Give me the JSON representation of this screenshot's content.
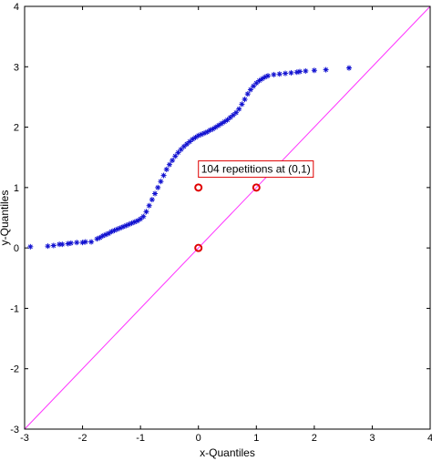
{
  "chart_data": {
    "type": "scatter",
    "title": "",
    "xlabel": "x-Quantiles",
    "ylabel": "y-Quantiles",
    "xlim": [
      -3,
      4
    ],
    "ylim": [
      -3,
      4
    ],
    "xticks": [
      "-3",
      "-2",
      "-1",
      "0",
      "1",
      "2",
      "3",
      "4"
    ],
    "yticks": [
      "-3",
      "-2",
      "-1",
      "0",
      "1",
      "2",
      "3",
      "4"
    ],
    "grid": false,
    "reference_line": {
      "x": [
        -3,
        4
      ],
      "y": [
        -3,
        4
      ],
      "color": "#ff33ff"
    },
    "series": [
      {
        "marker": "star",
        "color": "#1010d0",
        "points": [
          [
            -2.9,
            0.02
          ],
          [
            -2.6,
            0.03
          ],
          [
            -2.5,
            0.04
          ],
          [
            -2.4,
            0.06
          ],
          [
            -2.35,
            0.06
          ],
          [
            -2.25,
            0.07
          ],
          [
            -2.2,
            0.08
          ],
          [
            -2.1,
            0.09
          ],
          [
            -2.0,
            0.09
          ],
          [
            -1.95,
            0.1
          ],
          [
            -1.85,
            0.1
          ],
          [
            -1.75,
            0.15
          ],
          [
            -1.7,
            0.17
          ],
          [
            -1.65,
            0.2
          ],
          [
            -1.6,
            0.22
          ],
          [
            -1.55,
            0.24
          ],
          [
            -1.5,
            0.27
          ],
          [
            -1.45,
            0.29
          ],
          [
            -1.4,
            0.31
          ],
          [
            -1.35,
            0.33
          ],
          [
            -1.3,
            0.35
          ],
          [
            -1.25,
            0.37
          ],
          [
            -1.2,
            0.39
          ],
          [
            -1.15,
            0.41
          ],
          [
            -1.1,
            0.43
          ],
          [
            -1.05,
            0.45
          ],
          [
            -1.0,
            0.48
          ],
          [
            -0.95,
            0.52
          ],
          [
            -0.9,
            0.6
          ],
          [
            -0.85,
            0.7
          ],
          [
            -0.8,
            0.8
          ],
          [
            -0.75,
            0.9
          ],
          [
            -0.7,
            1.0
          ],
          [
            -0.65,
            1.1
          ],
          [
            -0.6,
            1.2
          ],
          [
            -0.55,
            1.3
          ],
          [
            -0.5,
            1.38
          ],
          [
            -0.45,
            1.45
          ],
          [
            -0.4,
            1.52
          ],
          [
            -0.35,
            1.58
          ],
          [
            -0.3,
            1.63
          ],
          [
            -0.25,
            1.68
          ],
          [
            -0.2,
            1.72
          ],
          [
            -0.15,
            1.76
          ],
          [
            -0.1,
            1.8
          ],
          [
            -0.05,
            1.83
          ],
          [
            0.0,
            1.86
          ],
          [
            0.05,
            1.88
          ],
          [
            0.1,
            1.9
          ],
          [
            0.15,
            1.92
          ],
          [
            0.2,
            1.95
          ],
          [
            0.25,
            1.97
          ],
          [
            0.3,
            2.0
          ],
          [
            0.35,
            2.03
          ],
          [
            0.4,
            2.06
          ],
          [
            0.45,
            2.09
          ],
          [
            0.5,
            2.12
          ],
          [
            0.55,
            2.16
          ],
          [
            0.6,
            2.2
          ],
          [
            0.65,
            2.24
          ],
          [
            0.7,
            2.3
          ],
          [
            0.75,
            2.38
          ],
          [
            0.8,
            2.46
          ],
          [
            0.85,
            2.55
          ],
          [
            0.9,
            2.62
          ],
          [
            0.95,
            2.68
          ],
          [
            1.0,
            2.73
          ],
          [
            1.05,
            2.77
          ],
          [
            1.1,
            2.8
          ],
          [
            1.15,
            2.83
          ],
          [
            1.2,
            2.85
          ],
          [
            1.3,
            2.87
          ],
          [
            1.4,
            2.88
          ],
          [
            1.5,
            2.89
          ],
          [
            1.6,
            2.9
          ],
          [
            1.7,
            2.91
          ],
          [
            1.75,
            2.92
          ],
          [
            1.85,
            2.93
          ],
          [
            2.0,
            2.94
          ],
          [
            2.2,
            2.95
          ],
          [
            2.6,
            2.98
          ]
        ]
      },
      {
        "marker": "circle",
        "color": "#e00000",
        "points": [
          [
            0,
            1
          ],
          [
            1,
            1
          ],
          [
            0,
            0
          ]
        ]
      }
    ],
    "annotations": [
      {
        "text": "104 repetitions at (0,1)",
        "x": 0,
        "y": 1.2
      }
    ]
  }
}
